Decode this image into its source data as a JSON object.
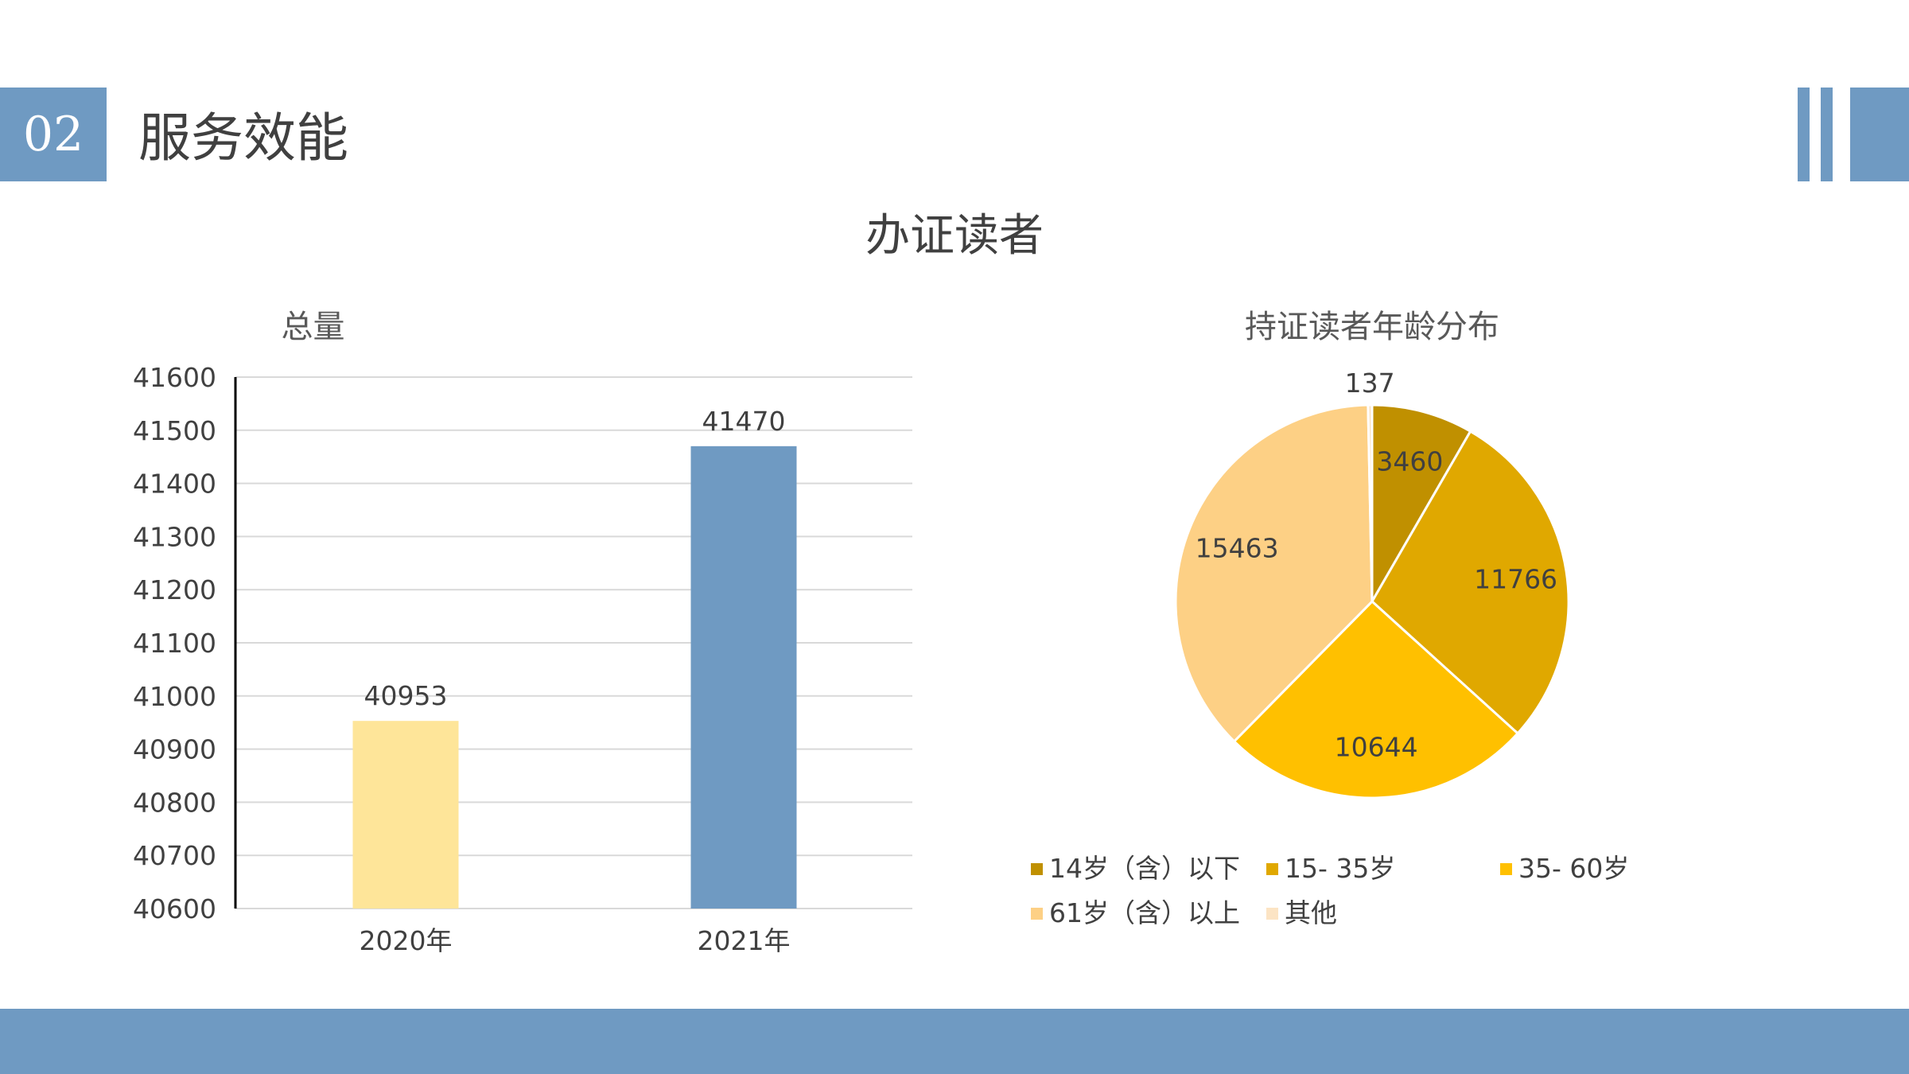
{
  "header": {
    "section_number": "02",
    "section_title": "服务效能"
  },
  "main_title": "办证读者",
  "colors": {
    "accent": "#6f9ac2",
    "bar_2020": "#fee599",
    "bar_2021": "#6f9ac2",
    "pie": [
      "#c09000",
      "#e0a800",
      "#ffc000",
      "#fdd085",
      "#fce4c4"
    ]
  },
  "chart_data": [
    {
      "type": "bar",
      "title": "总量",
      "categories": [
        "2020年",
        "2021年"
      ],
      "values": [
        40953,
        41470
      ],
      "ylim": [
        40600,
        41600
      ],
      "yticks": [
        40600,
        40700,
        40800,
        40900,
        41000,
        41100,
        41200,
        41300,
        41400,
        41500,
        41600
      ],
      "grid": true,
      "data_labels": true
    },
    {
      "type": "pie",
      "title": "持证读者年龄分布",
      "labels": [
        "14岁（含）以下",
        "15- 35岁",
        "35- 60岁",
        "61岁（含）以上",
        "其他"
      ],
      "values": [
        3460,
        11766,
        10644,
        15463,
        137
      ],
      "data_labels": true,
      "legend": "bottom"
    }
  ]
}
